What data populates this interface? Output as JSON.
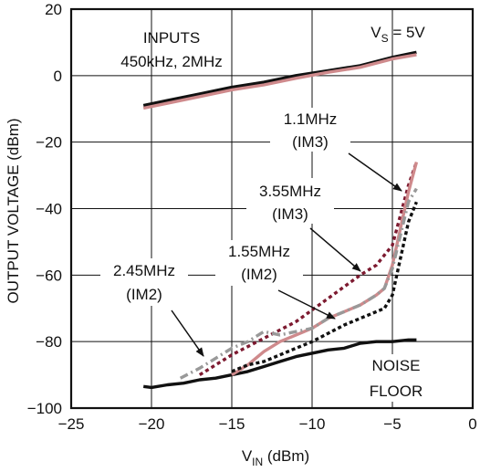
{
  "chart_data": {
    "type": "line",
    "xlabel": {
      "main": "V",
      "sub": "IN",
      "rest": " (dBm)"
    },
    "ylabel": "OUTPUT VOLTAGE (dBm)",
    "xlim": [
      -25,
      0
    ],
    "ylim": [
      -100,
      20
    ],
    "xticks": [
      -25,
      -20,
      -15,
      -10,
      -5,
      0
    ],
    "yticks": [
      -100,
      -80,
      -60,
      -40,
      -20,
      0,
      20
    ],
    "xtick_labels": [
      "−25",
      "−20",
      "−15",
      "−10",
      "−5",
      "0"
    ],
    "ytick_labels": [
      "−100",
      "−80",
      "−60",
      "−40",
      "−20",
      "0",
      "20"
    ],
    "grid": true,
    "series": [
      {
        "key": "fund_a",
        "color": "#111111",
        "dash": "solid",
        "x": [
          -20.5,
          -19,
          -17,
          -15,
          -13,
          -11,
          -9,
          -7,
          -5,
          -3.5
        ],
        "y": [
          -9,
          -7.5,
          -5.5,
          -3.5,
          -2,
          0,
          1.5,
          3,
          5.5,
          7
        ]
      },
      {
        "key": "fund_b",
        "color": "#cf8a8c",
        "dash": "solid",
        "x": [
          -20.5,
          -19,
          -17,
          -15,
          -13,
          -11,
          -9,
          -7,
          -5,
          -3.5
        ],
        "y": [
          -9.8,
          -8.3,
          -6.3,
          -4.3,
          -2.8,
          -0.8,
          1,
          2.5,
          5,
          6.3
        ]
      },
      {
        "key": "noise",
        "color": "#111111",
        "dash": "solid",
        "x": [
          -20.5,
          -20,
          -19,
          -18,
          -17,
          -16,
          -15,
          -14,
          -13,
          -12,
          -11,
          -10,
          -9,
          -8,
          -7,
          -6,
          -5,
          -4,
          -3.5
        ],
        "y": [
          -93.5,
          -93.8,
          -93,
          -92.5,
          -91.5,
          -91,
          -90,
          -89,
          -87.5,
          -86,
          -84.5,
          -83.5,
          -82.5,
          -82,
          -80.5,
          -80,
          -80,
          -79.5,
          -79.5
        ]
      },
      {
        "key": "im3_355",
        "color": "#7d1a30",
        "dash": "4,3.5",
        "x": [
          -17,
          -15,
          -13,
          -11,
          -9,
          -7,
          -6,
          -5,
          -4.5,
          -4,
          -3.5
        ],
        "y": [
          -90,
          -84,
          -79,
          -74,
          -67,
          -60,
          -57,
          -51,
          -42,
          -33,
          -26
        ]
      },
      {
        "key": "im3_11",
        "color": "#cf8a8c",
        "dash": "solid",
        "x": [
          -15,
          -14,
          -13,
          -12,
          -11,
          -10,
          -9,
          -8,
          -7,
          -6,
          -5.5,
          -5,
          -4.5,
          -4,
          -3.5
        ],
        "y": [
          -90,
          -87,
          -83,
          -80,
          -78,
          -76,
          -73,
          -71,
          -69,
          -66,
          -64,
          -57,
          -46,
          -35,
          -26
        ]
      },
      {
        "key": "im2_155",
        "color": "#111111",
        "dash": "4,3",
        "x": [
          -15,
          -14,
          -13,
          -12,
          -11,
          -10,
          -9,
          -8,
          -7,
          -6,
          -5.5,
          -5,
          -4.5,
          -4,
          -3.5
        ],
        "y": [
          -89,
          -87,
          -86,
          -84,
          -82,
          -80,
          -77.5,
          -75,
          -73,
          -71,
          -70,
          -66,
          -55,
          -44,
          -38
        ]
      },
      {
        "key": "im2_245",
        "color": "#999999",
        "dash": "9,4,2,4",
        "x": [
          -18.2,
          -17,
          -16,
          -15,
          -14,
          -13,
          -12,
          -11,
          -10,
          -9,
          -8,
          -7,
          -6,
          -5.5,
          -5,
          -4.5,
          -4,
          -3.5
        ],
        "y": [
          -91,
          -88,
          -85,
          -82,
          -80,
          -77,
          -78,
          -77,
          -76,
          -73,
          -71,
          -69,
          -66,
          -64,
          -58,
          -48,
          -38,
          -34
        ]
      }
    ]
  },
  "annotations": {
    "vs": {
      "main": "V",
      "sub": "S",
      "rest": " = 5V"
    },
    "inputs_1": "INPUTS",
    "inputs_2": "450kHz, 2MHz",
    "l11_1": "1.1MHz",
    "l11_2": "(IM3)",
    "l355_1": "3.55MHz",
    "l355_2": "(IM3)",
    "l155_1": "1.55MHz",
    "l155_2": "(IM2)",
    "l245_1": "2.45MHz",
    "l245_2": "(IM2)",
    "noise_1": "NOISE",
    "noise_2": "FLOOR"
  }
}
